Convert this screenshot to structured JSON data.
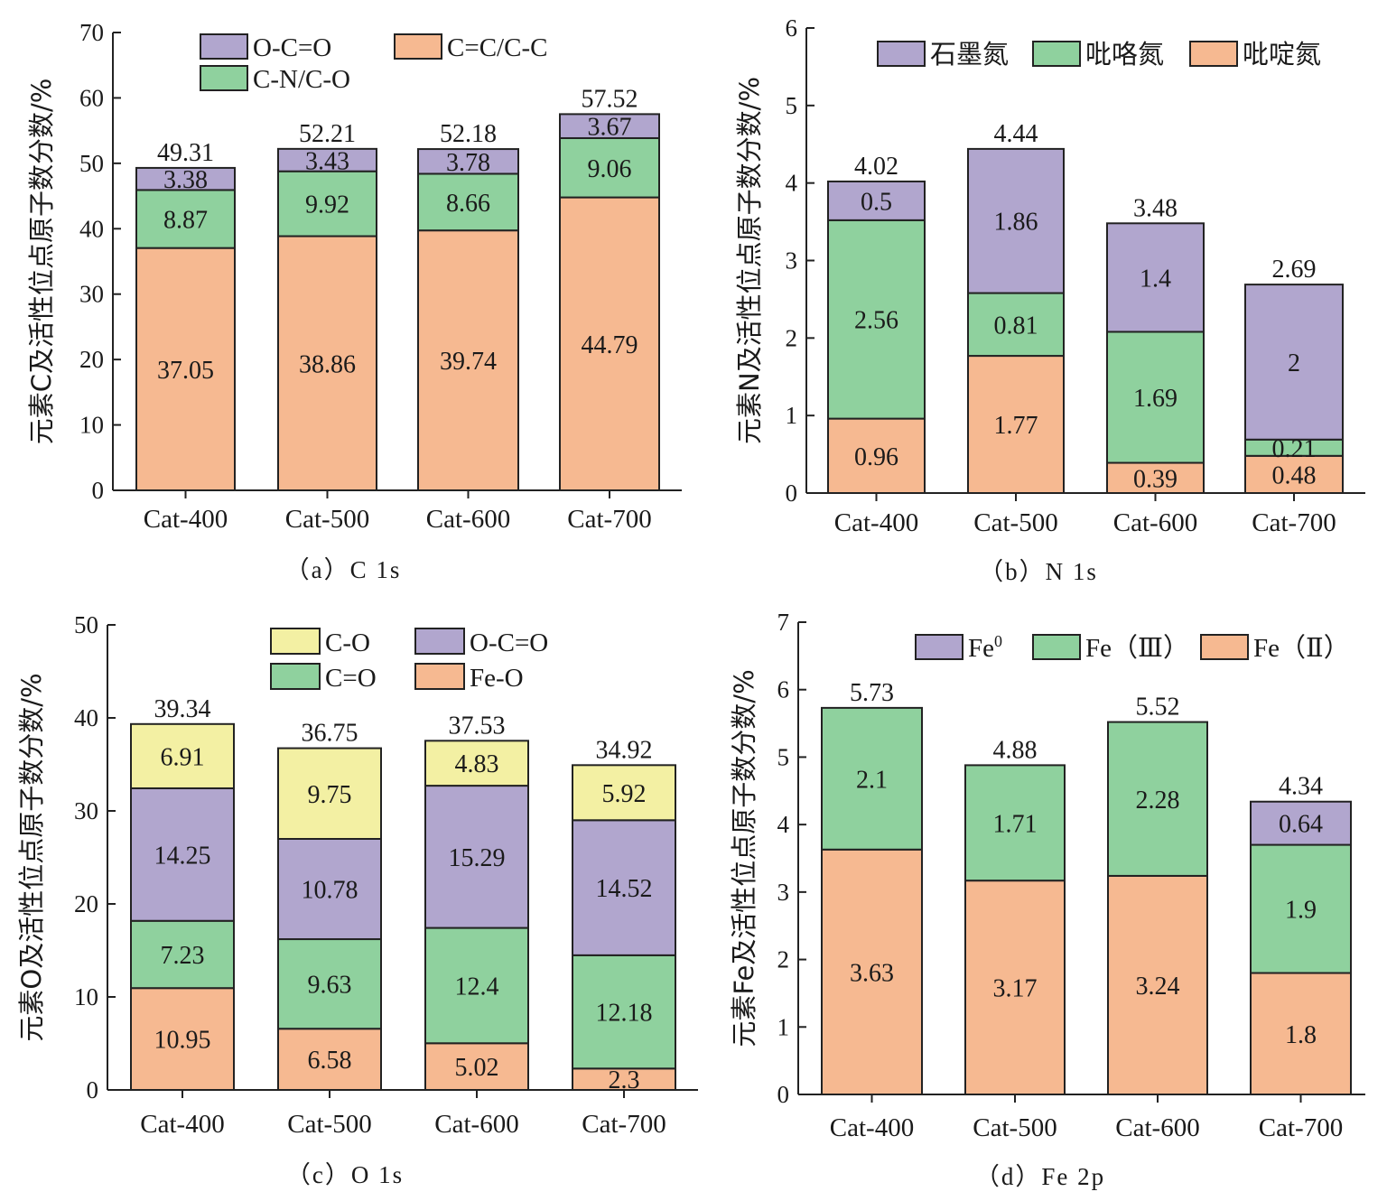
{
  "colors": {
    "orange": "#F6B991",
    "green": "#8FD19E",
    "purple": "#B1A6CE",
    "yellow": "#F3F0A3"
  },
  "chart_data": [
    {
      "id": "a",
      "type": "bar",
      "stacked": true,
      "caption": "（a）C 1s",
      "ylabel": "元素C及活性位点原子数分数/%",
      "ylim": [
        0,
        70
      ],
      "yticks": [
        0,
        10,
        20,
        30,
        40,
        50,
        60,
        70
      ],
      "categories": [
        "Cat-400",
        "Cat-500",
        "Cat-600",
        "Cat-700"
      ],
      "series": [
        {
          "name": "C=C/C-C",
          "color": "orange",
          "values": [
            37.05,
            38.86,
            39.74,
            44.79
          ]
        },
        {
          "name": "C-N/C-O",
          "color": "green",
          "values": [
            8.87,
            9.92,
            8.66,
            9.06
          ]
        },
        {
          "name": "O-C=O",
          "color": "purple",
          "values": [
            3.38,
            3.43,
            3.78,
            3.67
          ]
        }
      ],
      "totals": [
        49.31,
        52.21,
        52.18,
        57.52
      ],
      "legend_order": [
        "O-C=O",
        "C=C/C-C",
        "C-N/C-O"
      ],
      "legend_position": "top-left"
    },
    {
      "id": "b",
      "type": "bar",
      "stacked": true,
      "caption": "（b）N 1s",
      "ylabel": "元素N及活性位点原子数分数/%",
      "ylim": [
        0,
        6
      ],
      "yticks": [
        0,
        1,
        2,
        3,
        4,
        5,
        6
      ],
      "categories": [
        "Cat-400",
        "Cat-500",
        "Cat-600",
        "Cat-700"
      ],
      "series": [
        {
          "name": "吡啶氮",
          "color": "orange",
          "values": [
            0.96,
            1.77,
            0.39,
            0.48
          ]
        },
        {
          "name": "吡咯氮",
          "color": "green",
          "values": [
            2.56,
            0.81,
            1.69,
            0.21
          ]
        },
        {
          "name": "石墨氮",
          "color": "purple",
          "values": [
            0.5,
            1.86,
            1.4,
            2
          ]
        }
      ],
      "totals": [
        4.02,
        4.44,
        3.48,
        2.69
      ],
      "legend_order": [
        "石墨氮",
        "吡咯氮",
        "吡啶氮"
      ],
      "legend_position": "top"
    },
    {
      "id": "c",
      "type": "bar",
      "stacked": true,
      "caption": "（c）O 1s",
      "ylabel": "元素O及活性位点原子数分数/%",
      "ylim": [
        0,
        50
      ],
      "yticks": [
        0,
        10,
        20,
        30,
        40,
        50
      ],
      "categories": [
        "Cat-400",
        "Cat-500",
        "Cat-600",
        "Cat-700"
      ],
      "series": [
        {
          "name": "Fe-O",
          "color": "orange",
          "values": [
            10.95,
            6.58,
            5.02,
            2.3
          ]
        },
        {
          "name": "C=O",
          "color": "green",
          "values": [
            7.23,
            9.63,
            12.4,
            12.18
          ]
        },
        {
          "name": "O-C=O",
          "color": "purple",
          "values": [
            14.25,
            10.78,
            15.29,
            14.52
          ]
        },
        {
          "name": "C-O",
          "color": "yellow",
          "values": [
            6.91,
            9.75,
            4.83,
            5.92
          ]
        }
      ],
      "totals": [
        39.34,
        36.75,
        37.53,
        34.92
      ],
      "legend_order": [
        "C-O",
        "O-C=O",
        "C=O",
        "Fe-O"
      ],
      "legend_position": "top"
    },
    {
      "id": "d",
      "type": "bar",
      "stacked": true,
      "caption": "（d）Fe 2p",
      "ylabel": "元素Fe及活性位点原子数分数/%",
      "ylim": [
        0,
        7
      ],
      "yticks": [
        0,
        1,
        2,
        3,
        4,
        5,
        6,
        7
      ],
      "categories": [
        "Cat-400",
        "Cat-500",
        "Cat-600",
        "Cat-700"
      ],
      "series": [
        {
          "name": "Fe（Ⅱ）",
          "color": "orange",
          "values": [
            3.63,
            3.17,
            3.24,
            1.8
          ]
        },
        {
          "name": "Fe（Ⅲ）",
          "color": "green",
          "values": [
            2.1,
            1.71,
            2.28,
            1.9
          ]
        },
        {
          "name": "Fe0",
          "color": "purple",
          "values": [
            0,
            0,
            0,
            0.64
          ]
        }
      ],
      "totals": [
        5.73,
        4.88,
        5.52,
        4.34
      ],
      "legend_order": [
        "Fe0",
        "Fe（Ⅲ）",
        "Fe（Ⅱ）"
      ],
      "legend_position": "top-right"
    }
  ]
}
